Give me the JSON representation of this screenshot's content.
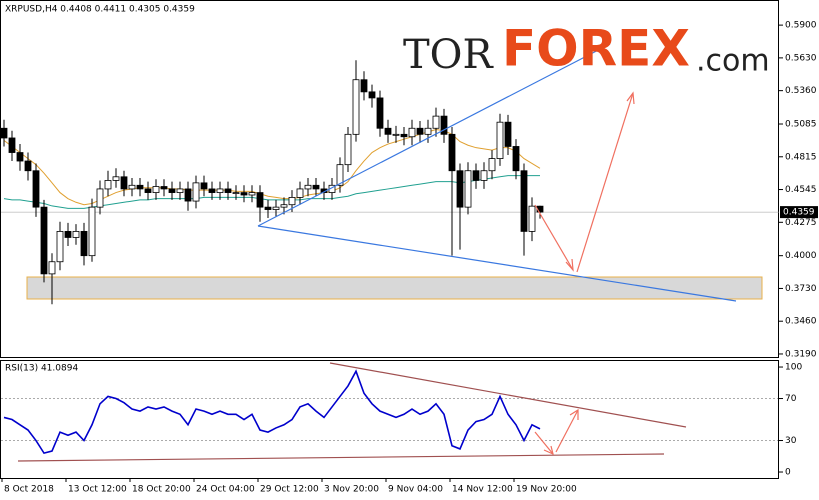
{
  "chart_data": {
    "type": "candlestick",
    "title": "XRPUSD,H4 0.4408 0.4411 0.4305 0.4359",
    "logo": [
      "TOR",
      "FOREX",
      ".com"
    ],
    "last_price_label": "0.4359",
    "categories": [
      "8 Oct 2018",
      null,
      null,
      null,
      null,
      null,
      null,
      null,
      "13 Oct 12:00",
      null,
      null,
      null,
      null,
      null,
      null,
      null,
      "18 Oct 20:00",
      null,
      null,
      null,
      null,
      null,
      null,
      null,
      "24 Oct 04:00",
      null,
      null,
      null,
      null,
      null,
      null,
      null,
      "29 Oct 12:00",
      null,
      null,
      null,
      null,
      null,
      null,
      null,
      "3 Nov 20:00",
      null,
      null,
      null,
      null,
      null,
      null,
      null,
      "9 Nov 04:00",
      null,
      null,
      null,
      null,
      null,
      null,
      null,
      "14 Nov 12:00",
      null,
      null,
      null,
      null,
      null,
      null,
      null,
      "19 Nov 20:00",
      null,
      null,
      null
    ],
    "open": [
      0.505,
      0.497,
      0.485,
      0.478,
      0.47,
      0.44,
      0.385,
      0.395,
      0.42,
      0.415,
      0.42,
      0.4,
      0.44,
      0.455,
      0.462,
      0.465,
      0.455,
      0.458,
      0.455,
      0.452,
      0.457,
      0.455,
      0.452,
      0.455,
      0.445,
      0.46,
      0.455,
      0.452,
      0.455,
      0.452,
      0.452,
      0.45,
      0.452,
      0.44,
      0.438,
      0.44,
      0.442,
      0.448,
      0.455,
      0.458,
      0.455,
      0.452,
      0.458,
      0.475,
      0.5,
      0.545,
      0.535,
      0.53,
      0.505,
      0.5,
      0.5,
      0.498,
      0.505,
      0.5,
      0.505,
      0.515,
      0.5,
      0.47,
      0.44,
      0.47,
      0.462,
      0.47,
      0.48,
      0.51,
      0.49,
      0.47,
      0.42,
      0.4408
    ],
    "high": [
      0.512,
      0.503,
      0.492,
      0.485,
      0.476,
      0.446,
      0.402,
      0.428,
      0.427,
      0.426,
      0.427,
      0.447,
      0.462,
      0.47,
      0.472,
      0.47,
      0.464,
      0.464,
      0.461,
      0.463,
      0.463,
      0.461,
      0.461,
      0.461,
      0.466,
      0.466,
      0.461,
      0.461,
      0.461,
      0.458,
      0.458,
      0.458,
      0.458,
      0.446,
      0.446,
      0.448,
      0.454,
      0.461,
      0.464,
      0.464,
      0.461,
      0.464,
      0.481,
      0.506,
      0.561,
      0.552,
      0.541,
      0.536,
      0.512,
      0.507,
      0.506,
      0.512,
      0.511,
      0.512,
      0.522,
      0.521,
      0.506,
      0.476,
      0.477,
      0.476,
      0.477,
      0.487,
      0.517,
      0.516,
      0.496,
      0.476,
      0.448,
      0.4411
    ],
    "low": [
      0.49,
      0.478,
      0.47,
      0.462,
      0.432,
      0.378,
      0.36,
      0.388,
      0.408,
      0.409,
      0.392,
      0.395,
      0.434,
      0.449,
      0.456,
      0.449,
      0.449,
      0.449,
      0.446,
      0.446,
      0.449,
      0.446,
      0.446,
      0.437,
      0.439,
      0.449,
      0.446,
      0.446,
      0.446,
      0.446,
      0.444,
      0.444,
      0.428,
      0.431,
      0.432,
      0.434,
      0.436,
      0.442,
      0.449,
      0.449,
      0.446,
      0.446,
      0.452,
      0.469,
      0.494,
      0.528,
      0.522,
      0.498,
      0.493,
      0.493,
      0.491,
      0.491,
      0.493,
      0.493,
      0.498,
      0.493,
      0.4,
      0.405,
      0.434,
      0.455,
      0.455,
      0.463,
      0.474,
      0.483,
      0.463,
      0.4,
      0.412,
      0.4305
    ],
    "close": [
      0.497,
      0.485,
      0.478,
      0.47,
      0.44,
      0.385,
      0.395,
      0.42,
      0.415,
      0.42,
      0.4,
      0.44,
      0.455,
      0.462,
      0.465,
      0.455,
      0.458,
      0.455,
      0.452,
      0.457,
      0.455,
      0.452,
      0.455,
      0.445,
      0.46,
      0.455,
      0.452,
      0.455,
      0.452,
      0.452,
      0.45,
      0.452,
      0.44,
      0.438,
      0.44,
      0.442,
      0.448,
      0.455,
      0.458,
      0.455,
      0.452,
      0.458,
      0.475,
      0.5,
      0.545,
      0.535,
      0.53,
      0.505,
      0.5,
      0.5,
      0.498,
      0.505,
      0.5,
      0.505,
      0.515,
      0.5,
      0.47,
      0.44,
      0.47,
      0.462,
      0.47,
      0.48,
      0.51,
      0.49,
      0.47,
      0.42,
      0.4408,
      0.4359
    ],
    "series": [
      {
        "color": "#e0a030",
        "values": [
          0.495,
          0.49,
          0.485,
          0.48,
          0.475,
          0.468,
          0.46,
          0.452,
          0.447,
          0.444,
          0.442,
          0.443,
          0.446,
          0.449,
          0.452,
          0.454,
          0.455,
          0.456,
          0.456,
          0.456,
          0.456,
          0.455,
          0.455,
          0.454,
          0.454,
          0.454,
          0.454,
          0.454,
          0.454,
          0.453,
          0.453,
          0.453,
          0.451,
          0.449,
          0.448,
          0.447,
          0.447,
          0.448,
          0.45,
          0.451,
          0.452,
          0.453,
          0.456,
          0.461,
          0.47,
          0.478,
          0.485,
          0.489,
          0.492,
          0.494,
          0.496,
          0.498,
          0.5,
          0.502,
          0.504,
          0.503,
          0.5,
          0.494,
          0.491,
          0.489,
          0.488,
          0.487,
          0.489,
          0.489,
          0.486,
          0.48,
          0.476,
          0.472
        ]
      },
      {
        "color": "#20a090",
        "values": [
          0.447,
          0.446,
          0.446,
          0.445,
          0.444,
          0.443,
          0.441,
          0.44,
          0.439,
          0.439,
          0.439,
          0.44,
          0.441,
          0.442,
          0.443,
          0.444,
          0.445,
          0.446,
          0.446,
          0.447,
          0.447,
          0.447,
          0.447,
          0.447,
          0.447,
          0.448,
          0.448,
          0.448,
          0.448,
          0.448,
          0.448,
          0.448,
          0.447,
          0.446,
          0.446,
          0.446,
          0.446,
          0.446,
          0.447,
          0.447,
          0.447,
          0.447,
          0.448,
          0.449,
          0.451,
          0.452,
          0.453,
          0.454,
          0.455,
          0.456,
          0.457,
          0.458,
          0.459,
          0.46,
          0.461,
          0.461,
          0.461,
          0.46,
          0.461,
          0.462,
          0.463,
          0.464,
          0.465,
          0.466,
          0.466,
          0.466,
          0.466,
          0.466
        ]
      }
    ],
    "ylim": [
      0.6107,
      0.3165
    ],
    "yticks": [
      {
        "value": 0.59,
        "label": "0.5900"
      },
      {
        "value": 0.563,
        "label": "0.5630"
      },
      {
        "value": 0.536,
        "label": "0.5360"
      },
      {
        "value": 0.5085,
        "label": "0.5085"
      },
      {
        "value": 0.4815,
        "label": "0.4815"
      },
      {
        "value": 0.4545,
        "label": "0.4545"
      },
      {
        "value": 0.4275,
        "label": "0.4275"
      },
      {
        "value": 0.4,
        "label": "0.4000"
      },
      {
        "value": 0.373,
        "label": "0.3730"
      },
      {
        "value": 0.346,
        "label": "0.3460"
      },
      {
        "value": 0.319,
        "label": "0.3190"
      }
    ],
    "rsi": {
      "label": "RSI(13) 41.0894",
      "color": "#0000cc",
      "values": [
        52,
        50,
        45,
        40,
        30,
        18,
        20,
        38,
        35,
        38,
        30,
        45,
        65,
        72,
        70,
        66,
        60,
        58,
        62,
        60,
        62,
        58,
        55,
        45,
        60,
        58,
        55,
        58,
        55,
        55,
        50,
        55,
        40,
        38,
        42,
        45,
        50,
        62,
        65,
        58,
        52,
        62,
        72,
        82,
        96,
        75,
        65,
        58,
        55,
        52,
        55,
        60,
        55,
        58,
        65,
        55,
        25,
        22,
        40,
        48,
        50,
        55,
        72,
        55,
        45,
        30,
        45,
        41.0894
      ],
      "ylim": [
        106.7,
        -5.7
      ],
      "yticks": [
        100,
        70,
        30,
        0
      ]
    }
  }
}
